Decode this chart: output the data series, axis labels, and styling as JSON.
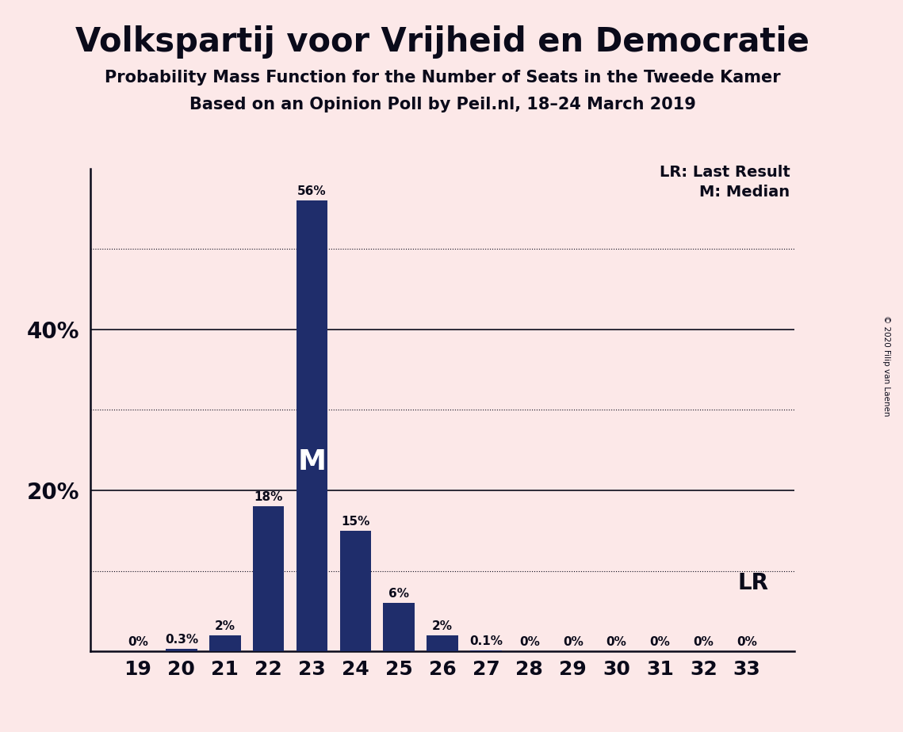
{
  "title": "Volkspartij voor Vrijheid en Democratie",
  "subtitle1": "Probability Mass Function for the Number of Seats in the Tweede Kamer",
  "subtitle2": "Based on an Opinion Poll by Peil.nl, 18–24 March 2019",
  "copyright": "© 2020 Filip van Laenen",
  "categories": [
    19,
    20,
    21,
    22,
    23,
    24,
    25,
    26,
    27,
    28,
    29,
    30,
    31,
    32,
    33
  ],
  "values": [
    0.0,
    0.3,
    2.0,
    18.0,
    56.0,
    15.0,
    6.0,
    2.0,
    0.1,
    0.0,
    0.0,
    0.0,
    0.0,
    0.0,
    0.0
  ],
  "labels": [
    "0%",
    "0.3%",
    "2%",
    "18%",
    "56%",
    "15%",
    "6%",
    "2%",
    "0.1%",
    "0%",
    "0%",
    "0%",
    "0%",
    "0%",
    "0%"
  ],
  "bar_color": "#1f2d6b",
  "background_color": "#fce8e8",
  "text_color": "#0a0a1a",
  "median_seat": 23,
  "lr_seat": 33,
  "ylim": [
    0,
    60
  ],
  "solid_grid": [
    20,
    40
  ],
  "dotted_grid": [
    10,
    30,
    50
  ],
  "ytick_positions": [
    20,
    40
  ],
  "ytick_labels": [
    "20%",
    "40%"
  ],
  "legend_lr": "LR: Last Result",
  "legend_m": "M: Median",
  "lr_label": "LR",
  "m_label": "M"
}
